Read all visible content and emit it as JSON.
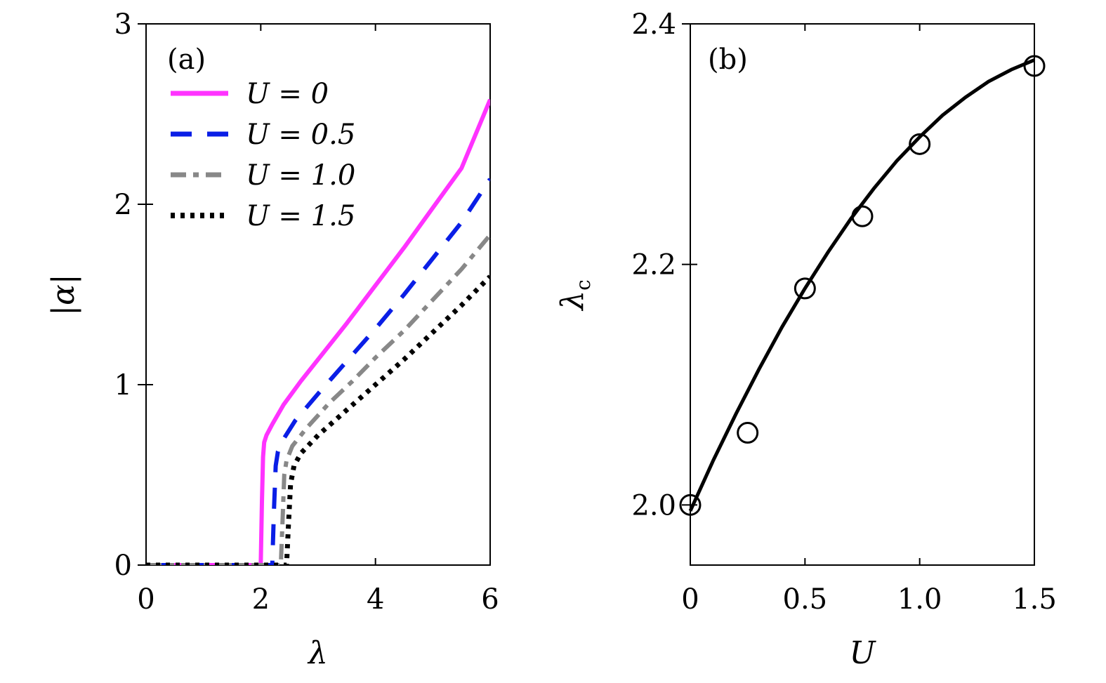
{
  "chart_data": [
    {
      "type": "line",
      "panel_label": "(a)",
      "xlabel": "λ",
      "ylabel": "|α|",
      "xlim": [
        0,
        6
      ],
      "ylim": [
        0,
        3
      ],
      "xticks": [
        "0",
        "2",
        "4",
        "6"
      ],
      "yticks": [
        "0",
        "1",
        "2",
        "3"
      ],
      "legend_placement": "top-left",
      "series": [
        {
          "name": "U = 0",
          "color": "#ff33ff",
          "dash": "solid",
          "x": [
            0,
            2.0,
            2.02,
            2.04,
            2.06,
            2.1,
            2.2,
            2.4,
            2.7,
            3.0,
            3.5,
            4.0,
            4.5,
            5.0,
            5.5,
            6.0
          ],
          "y": [
            0,
            0,
            0.35,
            0.6,
            0.68,
            0.72,
            0.78,
            0.89,
            1.02,
            1.14,
            1.34,
            1.55,
            1.76,
            1.98,
            2.2,
            2.58
          ]
        },
        {
          "name": "U = 0.5",
          "color": "#0a1ee6",
          "dash": "dash",
          "x": [
            0,
            2.2,
            2.23,
            2.26,
            2.3,
            2.4,
            2.6,
            3.0,
            3.5,
            4.0,
            4.5,
            5.0,
            5.5,
            6.0
          ],
          "y": [
            0,
            0,
            0.3,
            0.55,
            0.63,
            0.7,
            0.8,
            0.95,
            1.13,
            1.31,
            1.5,
            1.7,
            1.9,
            2.14
          ]
        },
        {
          "name": "U = 1.0",
          "color": "#888888",
          "dash": "dashdot",
          "x": [
            0,
            2.35,
            2.38,
            2.41,
            2.45,
            2.55,
            2.8,
            3.2,
            3.6,
            4.0,
            4.5,
            5.0,
            5.5,
            6.0
          ],
          "y": [
            0,
            0,
            0.25,
            0.5,
            0.58,
            0.66,
            0.76,
            0.9,
            1.02,
            1.15,
            1.3,
            1.47,
            1.64,
            1.83
          ]
        },
        {
          "name": "U = 1.5",
          "color": "#000000",
          "dash": "dot",
          "x": [
            0,
            2.45,
            2.48,
            2.52,
            2.58,
            2.7,
            3.0,
            3.5,
            4.0,
            4.5,
            5.0,
            5.5,
            6.0
          ],
          "y": [
            0,
            0,
            0.2,
            0.45,
            0.55,
            0.62,
            0.72,
            0.86,
            1.0,
            1.14,
            1.29,
            1.44,
            1.6
          ]
        }
      ]
    },
    {
      "type": "scatter",
      "panel_label": "(b)",
      "xlabel": "U",
      "ylabel": "λ",
      "ylabel_sub": "c",
      "xlim": [
        0,
        1.5
      ],
      "ylim": [
        1.95,
        2.4
      ],
      "xticks": [
        "0",
        "0.5",
        "1.0",
        "1.5"
      ],
      "yticks": [
        "2.0",
        "2.2",
        "2.4"
      ],
      "points": {
        "x": [
          0,
          0.25,
          0.5,
          0.75,
          1.0,
          1.5
        ],
        "y": [
          2.0,
          2.06,
          2.18,
          2.24,
          2.3,
          2.365
        ]
      },
      "fit": {
        "x": [
          0,
          0.1,
          0.2,
          0.3,
          0.4,
          0.5,
          0.6,
          0.7,
          0.8,
          0.9,
          1.0,
          1.1,
          1.2,
          1.3,
          1.4,
          1.5
        ],
        "y": [
          1.995,
          2.037,
          2.076,
          2.113,
          2.148,
          2.18,
          2.21,
          2.238,
          2.263,
          2.286,
          2.306,
          2.324,
          2.339,
          2.352,
          2.362,
          2.37
        ]
      }
    }
  ]
}
